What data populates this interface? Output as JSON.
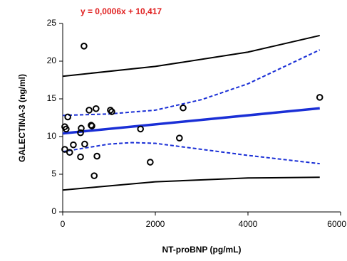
{
  "chart_data": {
    "type": "scatter",
    "annotation": "y = 0,0006x + 10,417",
    "annotation_color": "#e02020",
    "xlabel": "NT-proBNP (pg/mL)",
    "ylabel": "GALECTINA-3 (ng/ml)",
    "x": [
      45,
      75,
      110,
      45,
      150,
      230,
      385,
      400,
      385,
      475,
      460,
      570,
      615,
      630,
      720,
      740,
      680,
      1030,
      1060,
      1680,
      1890,
      2520,
      2600,
      5550
    ],
    "values": [
      11.3,
      11.0,
      12.6,
      8.3,
      7.9,
      8.9,
      10.5,
      11.1,
      7.3,
      9.0,
      22.0,
      13.5,
      11.5,
      11.4,
      13.7,
      7.4,
      4.8,
      13.5,
      13.3,
      11.0,
      6.6,
      9.8,
      13.8,
      15.2
    ],
    "color": "#000000",
    "lines": [
      {
        "x": [
          0,
          5550
        ],
        "values": [
          10.417,
          13.747
        ],
        "color": "#1a2fd6",
        "width": 3.5,
        "dashed": false
      },
      {
        "x": [
          0,
          1000,
          2000,
          3000,
          4000,
          5550
        ],
        "values": [
          12.8,
          13.0,
          13.5,
          14.9,
          17.0,
          21.5
        ],
        "color": "#1a2fd6",
        "width": 2,
        "dashed": true
      },
      {
        "x": [
          0,
          1000,
          1500,
          2000,
          3000,
          4000,
          5550
        ],
        "values": [
          8.0,
          9.0,
          9.2,
          9.1,
          8.3,
          7.5,
          6.4
        ],
        "color": "#1a2fd6",
        "width": 2,
        "dashed": true
      },
      {
        "x": [
          0,
          2000,
          4000,
          5550
        ],
        "values": [
          18.0,
          19.3,
          21.2,
          23.4
        ],
        "color": "#000000",
        "width": 2,
        "dashed": false
      },
      {
        "x": [
          0,
          2000,
          4000,
          5550
        ],
        "values": [
          2.9,
          4.0,
          4.5,
          4.6
        ],
        "color": "#000000",
        "width": 2,
        "dashed": false
      }
    ],
    "xlim": [
      0,
      6000
    ],
    "xticks": [
      0,
      2000,
      4000,
      6000
    ],
    "ylim": [
      0,
      25
    ],
    "yticks": [
      0,
      5,
      10,
      15,
      20,
      25
    ]
  }
}
